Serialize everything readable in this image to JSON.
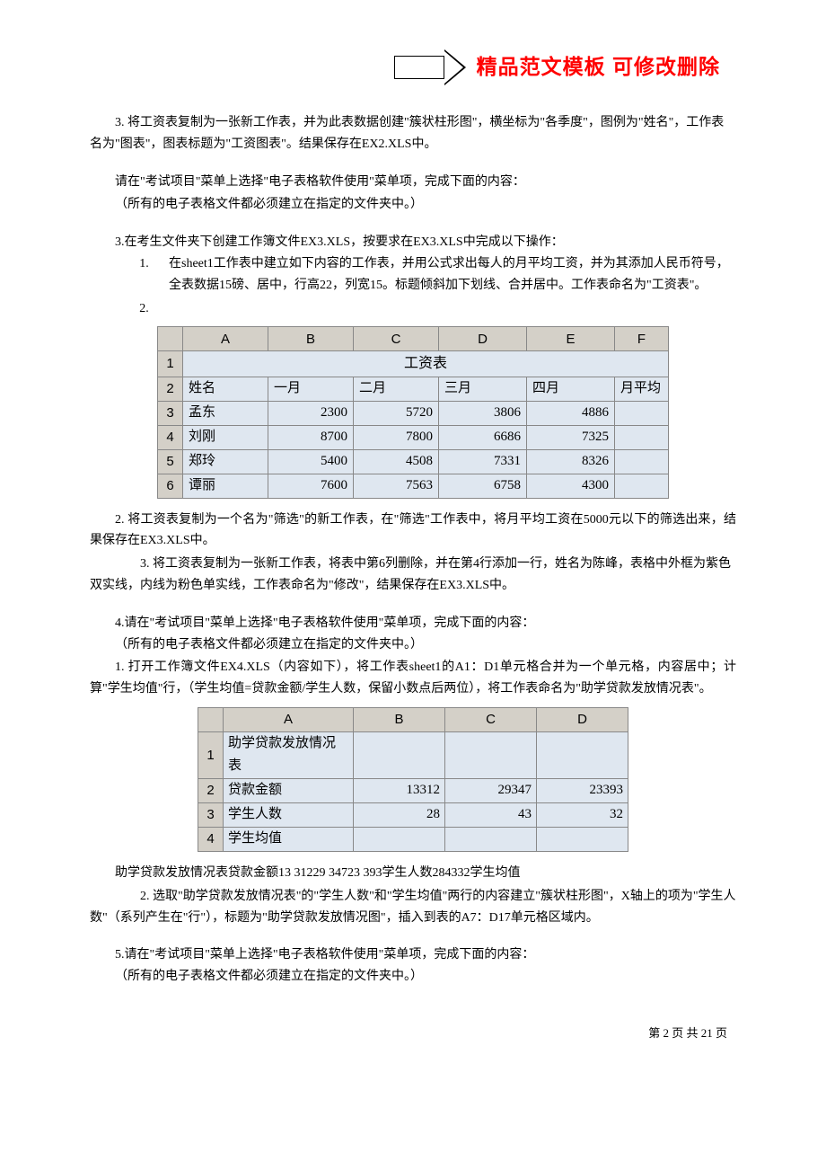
{
  "header": {
    "title": "精品范文模板 可修改删除"
  },
  "body": {
    "p1": "3. 将工资表复制为一张新工作表，并为此表数据创建\"簇状柱形图\"，横坐标为\"各季度\"，图例为\"姓名\"，工作表名为\"图表\"，图表标题为\"工资图表\"。结果保存在EX2.XLS中。",
    "p2": "请在\"考试项目\"菜单上选择\"电子表格软件使用\"菜单项，完成下面的内容：",
    "p3": "（所有的电子表格文件都必须建立在指定的文件夹中。）",
    "p4": "3.在考生文件夹下创建工作簿文件EX3.XLS，按要求在EX3.XLS中完成以下操作：",
    "li1_num": "1.",
    "li1": "在sheet1工作表中建立如下内容的工作表，并用公式求出每人的月平均工资，并为其添加人民币符号，全表数据15磅、居中，行高22，列宽15。标题倾斜加下划线、合并居中。工作表命名为\"工资表\"。",
    "li2_num": "2.",
    "table1": {
      "cols": [
        "A",
        "B",
        "C",
        "D",
        "E",
        "F"
      ],
      "rows": [
        "1",
        "2",
        "3",
        "4",
        "5",
        "6"
      ],
      "title": "工资表",
      "headers": [
        "姓名",
        "一月",
        "二月",
        "三月",
        "四月",
        "月平均"
      ],
      "data": [
        [
          "孟东",
          "2300",
          "5720",
          "3806",
          "4886",
          ""
        ],
        [
          "刘刚",
          "8700",
          "7800",
          "6686",
          "7325",
          ""
        ],
        [
          "郑玲",
          "5400",
          "4508",
          "7331",
          "8326",
          ""
        ],
        [
          "谭丽",
          "7600",
          "7563",
          "6758",
          "4300",
          ""
        ]
      ]
    },
    "p5": "2. 将工资表复制为一个名为\"筛选\"的新工作表，在\"筛选\"工作表中，将月平均工资在5000元以下的筛选出来，结果保存在EX3.XLS中。",
    "p6": "3. 将工资表复制为一张新工作表，将表中第6列删除，并在第4行添加一行，姓名为陈峰，表格中外框为紫色双实线，内线为粉色单实线，工作表命名为\"修改\"，结果保存在EX3.XLS中。",
    "p7": "4.请在\"考试项目\"菜单上选择\"电子表格软件使用\"菜单项，完成下面的内容：",
    "p8": "（所有的电子表格文件都必须建立在指定的文件夹中。）",
    "p9": "1. 打开工作簿文件EX4.XLS（内容如下），将工作表sheet1的A1：D1单元格合并为一个单元格，内容居中；计算\"学生均值\"行，（学生均值=贷款金额/学生人数，保留小数点后两位），将工作表命名为\"助学贷款发放情况表\"。",
    "table2": {
      "cols": [
        "A",
        "B",
        "C",
        "D"
      ],
      "rows": [
        "1",
        "2",
        "3",
        "4"
      ],
      "data": [
        [
          "助学贷款发放情况表",
          "",
          "",
          ""
        ],
        [
          "贷款金额",
          "13312",
          "29347",
          "23393"
        ],
        [
          "学生人数",
          "28",
          "43",
          "32"
        ],
        [
          "学生均值",
          "",
          "",
          ""
        ]
      ]
    },
    "p10": "助学贷款发放情况表贷款金额13 31229 34723 393学生人数284332学生均值",
    "p11": "2. 选取\"助学贷款发放情况表\"的\"学生人数\"和\"学生均值\"两行的内容建立\"簇状柱形图\"，X轴上的项为\"学生人数\"（系列产生在\"行\"），标题为\"助学贷款发放情况图\"，插入到表的A7：D17单元格区域内。",
    "p12": "5.请在\"考试项目\"菜单上选择\"电子表格软件使用\"菜单项，完成下面的内容：",
    "p13": "（所有的电子表格文件都必须建立在指定的文件夹中。）"
  },
  "footer": {
    "text": "第 2 页 共 21 页"
  },
  "style": {
    "accent_color": "#ff0000",
    "table_header_bg": "#d4d0c8",
    "table_cell_bg": "#dfe7f0",
    "border_color": "#888888"
  }
}
